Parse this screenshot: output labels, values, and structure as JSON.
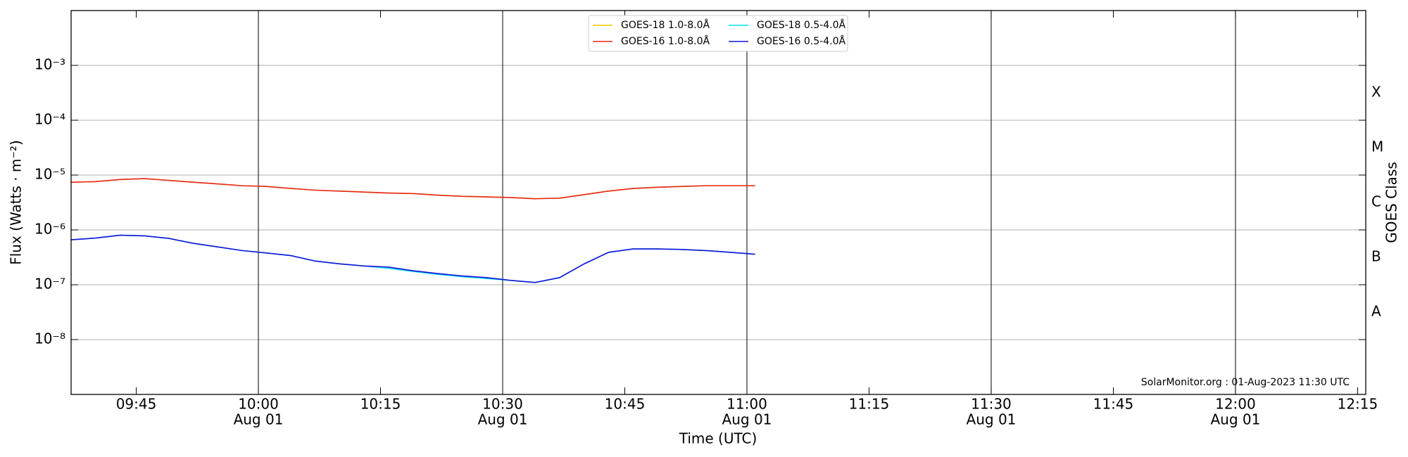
{
  "chart_data": {
    "type": "line",
    "ylabel": "Flux (Watts · m⁻²)",
    "xlabel": "Time (UTC)",
    "y2label": "GOES Class",
    "annotation": "SolarMonitor.org : 01-Aug-2023 11:30 UTC",
    "log_y": true,
    "grid": true,
    "legend": "top",
    "x": [
      "09:37",
      "09:40",
      "09:43",
      "09:46",
      "09:49",
      "09:52",
      "09:55",
      "09:58",
      "10:01",
      "10:04",
      "10:07",
      "10:10",
      "10:13",
      "10:16",
      "10:19",
      "10:22",
      "10:25",
      "10:28",
      "10:31",
      "10:34",
      "10:37",
      "10:40",
      "10:43",
      "10:46",
      "10:49",
      "10:52",
      "10:55",
      "10:58",
      "11:01"
    ],
    "xlim": [
      "09:37",
      "12:16"
    ],
    "xticks": [
      "09:45",
      {
        "value": "10:00",
        "label": "10:00",
        "sublabel": "Aug 01"
      },
      "10:15",
      {
        "value": "10:30",
        "label": "10:30",
        "sublabel": "Aug 01"
      },
      "10:45",
      {
        "value": "11:00",
        "label": "11:00",
        "sublabel": "Aug 01"
      },
      "11:15",
      {
        "value": "11:30",
        "label": "11:30",
        "sublabel": "Aug 01"
      },
      "11:45",
      {
        "value": "12:00",
        "label": "12:00",
        "sublabel": "Aug 01"
      },
      "12:15"
    ],
    "ylim": [
      1e-09,
      0.01
    ],
    "yticks": [
      {
        "value": 1e-08,
        "label": "10⁻⁸"
      },
      {
        "value": 1e-07,
        "label": "10⁻⁷"
      },
      {
        "value": 1e-06,
        "label": "10⁻⁶"
      },
      {
        "value": 1e-05,
        "label": "10⁻⁵"
      },
      {
        "value": 0.0001,
        "label": "10⁻⁴"
      },
      {
        "value": 0.001,
        "label": "10⁻³"
      }
    ],
    "class_labels": [
      {
        "value": 1e-08,
        "label": "A"
      },
      {
        "value": 1e-07,
        "label": "B"
      },
      {
        "value": 1e-06,
        "label": "C"
      },
      {
        "value": 1e-05,
        "label": "M"
      },
      {
        "value": 0.0001,
        "label": "X"
      }
    ],
    "series": [
      {
        "name": "GOES-18 1.0-8.0Å",
        "color": "#f2c500",
        "values": [
          7.4e-06,
          7.6e-06,
          8.3e-06,
          8.6e-06,
          8e-06,
          7.4e-06,
          6.9e-06,
          6.4e-06,
          6.2e-06,
          5.7e-06,
          5.3e-06,
          5.1e-06,
          4.9e-06,
          4.7e-06,
          4.6e-06,
          4.3e-06,
          4.1e-06,
          4e-06,
          3.9e-06,
          3.7e-06,
          3.8e-06,
          4.4e-06,
          5.1e-06,
          5.7e-06,
          6e-06,
          6.2e-06,
          6.4e-06,
          6.4e-06,
          6.4e-06
        ]
      },
      {
        "name": "GOES-16 1.0-8.0Å",
        "color": "#e8271c",
        "values": [
          7.4e-06,
          7.6e-06,
          8.3e-06,
          8.6e-06,
          8e-06,
          7.4e-06,
          6.9e-06,
          6.4e-06,
          6.2e-06,
          5.7e-06,
          5.3e-06,
          5.1e-06,
          4.9e-06,
          4.7e-06,
          4.6e-06,
          4.3e-06,
          4.1e-06,
          4e-06,
          3.9e-06,
          3.7e-06,
          3.8e-06,
          4.4e-06,
          5.1e-06,
          5.7e-06,
          6e-06,
          6.2e-06,
          6.4e-06,
          6.4e-06,
          6.4e-06
        ]
      },
      {
        "name": "GOES-18 0.5-4.0Å",
        "color": "#00e0f0",
        "values": [
          6.6e-07,
          7.1e-07,
          8e-07,
          7.8e-07,
          7e-07,
          5.7e-07,
          4.9e-07,
          4.2e-07,
          3.8e-07,
          3.4e-07,
          2.7e-07,
          2.4e-07,
          2.2e-07,
          2e-07,
          1.75e-07,
          1.55e-07,
          1.4e-07,
          1.3e-07,
          1.2e-07,
          1.1e-07,
          1.35e-07,
          2.4e-07,
          3.9e-07,
          4.5e-07,
          4.5e-07,
          4.4e-07,
          4.2e-07,
          3.9e-07,
          3.6e-07
        ]
      },
      {
        "name": "GOES-16 0.5-4.0Å",
        "color": "#1414d8",
        "values": [
          6.6e-07,
          7.1e-07,
          8e-07,
          7.8e-07,
          7e-07,
          5.7e-07,
          4.9e-07,
          4.2e-07,
          3.8e-07,
          3.4e-07,
          2.7e-07,
          2.4e-07,
          2.2e-07,
          2.1e-07,
          1.8e-07,
          1.6e-07,
          1.45e-07,
          1.35e-07,
          1.2e-07,
          1.1e-07,
          1.35e-07,
          2.4e-07,
          3.9e-07,
          4.5e-07,
          4.5e-07,
          4.4e-07,
          4.2e-07,
          3.9e-07,
          3.6e-07
        ]
      }
    ]
  }
}
